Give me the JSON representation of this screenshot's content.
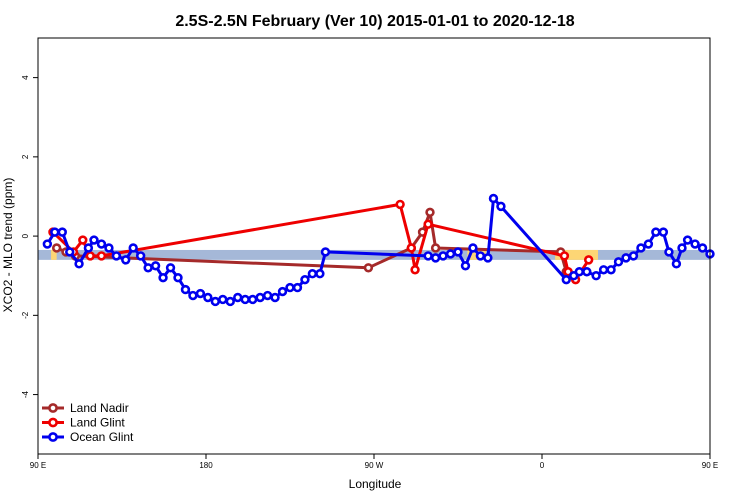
{
  "chart_data": {
    "type": "line",
    "title": "2.5S-2.5N February (Ver 10)   2015-01-01 to 2020-12-18",
    "xlabel": "Longitude",
    "ylabel": "XCO2 - MLO trend (ppm)",
    "xlim": [
      90,
      450
    ],
    "ylim": [
      -5.5,
      5
    ],
    "x_ticks": [
      {
        "value": 90,
        "label": "90 E"
      },
      {
        "value": 180,
        "label": "180"
      },
      {
        "value": 270,
        "label": "90 W"
      },
      {
        "value": 360,
        "label": "0"
      },
      {
        "value": 450,
        "label": "90 E"
      },
      {
        "value": 540,
        "label": "180"
      }
    ],
    "y_ticks": [
      {
        "value": 4,
        "label": "4"
      },
      {
        "value": 2,
        "label": "2"
      },
      {
        "value": 0,
        "label": "0"
      },
      {
        "value": -2,
        "label": "-2"
      },
      {
        "value": -4,
        "label": "-4"
      }
    ],
    "grid": false,
    "legend_position": "bottom-left",
    "band": {
      "y_min": -0.6,
      "y_max": -0.35,
      "color": "#a5b8d8"
    },
    "land_band_segments": [
      [
        97,
        100
      ],
      [
        320,
        330
      ],
      [
        367,
        390
      ],
      [
        459,
        465
      ],
      [
        483,
        487
      ]
    ],
    "land_band_color": "#fdd675",
    "series": [
      {
        "name": "Land Nadir",
        "color": "#a52a2a",
        "points": [
          [
            100,
            -0.3
          ],
          [
            105,
            -0.4
          ],
          [
            110,
            -0.5
          ],
          [
            267,
            -0.8
          ],
          [
            290,
            -0.3
          ],
          [
            296,
            0.1
          ],
          [
            300,
            0.6
          ],
          [
            303,
            -0.3
          ],
          [
            370,
            -0.4
          ],
          [
            373,
            -0.9
          ],
          [
            480,
            -0.3
          ],
          [
            485,
            -0.5
          ],
          [
            500,
            -0.5
          ]
        ]
      },
      {
        "name": "Land Glint",
        "color": "#ee0000",
        "points": [
          [
            98,
            0.1
          ],
          [
            109,
            -0.4
          ],
          [
            114,
            -0.1
          ],
          [
            118,
            -0.5
          ],
          [
            124,
            -0.5
          ],
          [
            284,
            0.8
          ],
          [
            290,
            -0.3
          ],
          [
            292,
            -0.85
          ],
          [
            299,
            0.3
          ],
          [
            372,
            -0.5
          ],
          [
            374,
            -0.9
          ],
          [
            378,
            -1.1
          ],
          [
            385,
            -0.6
          ],
          [
            486,
            0.1
          ],
          [
            494,
            -0.1
          ],
          [
            498,
            -0.5
          ]
        ]
      },
      {
        "name": "Ocean Glint",
        "color": "#0000ee",
        "points": [
          [
            95,
            -0.2
          ],
          [
            99,
            0.1
          ],
          [
            103,
            0.1
          ],
          [
            107,
            -0.4
          ],
          [
            112,
            -0.7
          ],
          [
            117,
            -0.3
          ],
          [
            120,
            -0.1
          ],
          [
            124,
            -0.2
          ],
          [
            128,
            -0.3
          ],
          [
            132,
            -0.5
          ],
          [
            137,
            -0.6
          ],
          [
            141,
            -0.3
          ],
          [
            145,
            -0.5
          ],
          [
            149,
            -0.8
          ],
          [
            153,
            -0.75
          ],
          [
            157,
            -1.05
          ],
          [
            161,
            -0.8
          ],
          [
            165,
            -1.05
          ],
          [
            169,
            -1.35
          ],
          [
            173,
            -1.5
          ],
          [
            177,
            -1.45
          ],
          [
            181,
            -1.55
          ],
          [
            185,
            -1.65
          ],
          [
            189,
            -1.6
          ],
          [
            193,
            -1.65
          ],
          [
            197,
            -1.55
          ],
          [
            201,
            -1.6
          ],
          [
            205,
            -1.6
          ],
          [
            209,
            -1.55
          ],
          [
            213,
            -1.5
          ],
          [
            217,
            -1.55
          ],
          [
            221,
            -1.4
          ],
          [
            225,
            -1.3
          ],
          [
            229,
            -1.3
          ],
          [
            233,
            -1.1
          ],
          [
            237,
            -0.95
          ],
          [
            241,
            -0.95
          ],
          [
            244,
            -0.4
          ],
          [
            299,
            -0.5
          ],
          [
            303,
            -0.55
          ],
          [
            307,
            -0.5
          ],
          [
            311,
            -0.45
          ],
          [
            315,
            -0.4
          ],
          [
            319,
            -0.75
          ],
          [
            323,
            -0.3
          ],
          [
            327,
            -0.5
          ],
          [
            331,
            -0.55
          ],
          [
            334,
            0.95
          ],
          [
            338,
            0.75
          ],
          [
            373,
            -1.1
          ],
          [
            377,
            -1.0
          ],
          [
            380,
            -0.9
          ],
          [
            384,
            -0.9
          ],
          [
            389,
            -1.0
          ],
          [
            393,
            -0.85
          ],
          [
            397,
            -0.85
          ],
          [
            401,
            -0.65
          ],
          [
            405,
            -0.55
          ],
          [
            409,
            -0.5
          ],
          [
            413,
            -0.3
          ],
          [
            417,
            -0.2
          ],
          [
            421,
            0.1
          ],
          [
            425,
            0.1
          ],
          [
            428,
            -0.4
          ],
          [
            432,
            -0.7
          ],
          [
            435,
            -0.3
          ],
          [
            438,
            -0.1
          ],
          [
            442,
            -0.2
          ],
          [
            446,
            -0.3
          ],
          [
            450,
            -0.45
          ],
          [
            454,
            -0.65
          ],
          [
            458,
            -0.3
          ],
          [
            462,
            -0.55
          ],
          [
            466,
            -0.8
          ],
          [
            470,
            -0.75
          ],
          [
            474,
            -1.05
          ],
          [
            478,
            -0.8
          ],
          [
            482,
            -0.8
          ]
        ]
      }
    ]
  }
}
